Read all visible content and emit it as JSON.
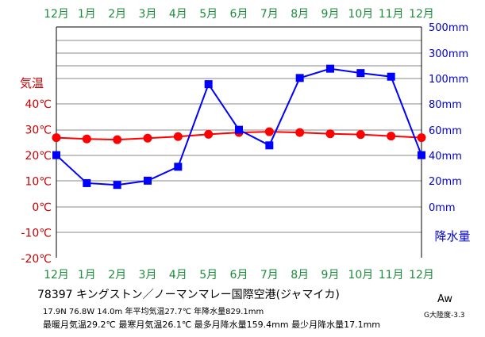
{
  "chart_data": {
    "type": "line",
    "categories": [
      "12月",
      "1月",
      "2月",
      "3月",
      "4月",
      "5月",
      "6月",
      "7月",
      "8月",
      "9月",
      "10月",
      "11月",
      "12月"
    ],
    "temp_axis": {
      "label": "気温",
      "range": [
        -20,
        40
      ],
      "ticks": [
        "40℃",
        "30℃",
        "20℃",
        "10℃",
        "0℃",
        "-10℃",
        "-20℃"
      ]
    },
    "precip_axis": {
      "label": "降水量",
      "ticks": [
        "500mm",
        "300mm",
        "100mm",
        "80mm",
        "60mm",
        "40mm",
        "20mm",
        "0mm"
      ]
    },
    "series": [
      {
        "key": "temperature",
        "values": [
          26.9,
          26.4,
          26.1,
          26.7,
          27.3,
          28.2,
          28.9,
          29.2,
          28.9,
          28.4,
          28.1,
          27.5,
          26.9
        ],
        "color": "#ff0000",
        "marker": "circle"
      },
      {
        "key": "precipitation",
        "values": [
          40.2,
          18.5,
          17.1,
          20.4,
          31.2,
          95.3,
          59.9,
          47.8,
          100.1,
          107.3,
          103.9,
          101.1,
          40.2
        ],
        "color": "#0000ff",
        "marker": "square"
      }
    ],
    "colors": {
      "month": "#1e8c3c",
      "temp_axis": "#cc0000",
      "precip_axis": "#0000cc"
    }
  },
  "info": {
    "station_line": "78397 キングストン／ノーマンマレー国際空港(ジャマイカ)",
    "coords_line": "17.9N 76.8W 14.0m 年平均気温27.7℃ 年降水量829.1mm",
    "extremes_line": "最暖月気温29.2℃ 最寒月気温26.1℃ 最多月降水量159.4mm 最少月降水量17.1mm",
    "climate": "Aw",
    "index_line": "G大陸度-3.3"
  }
}
